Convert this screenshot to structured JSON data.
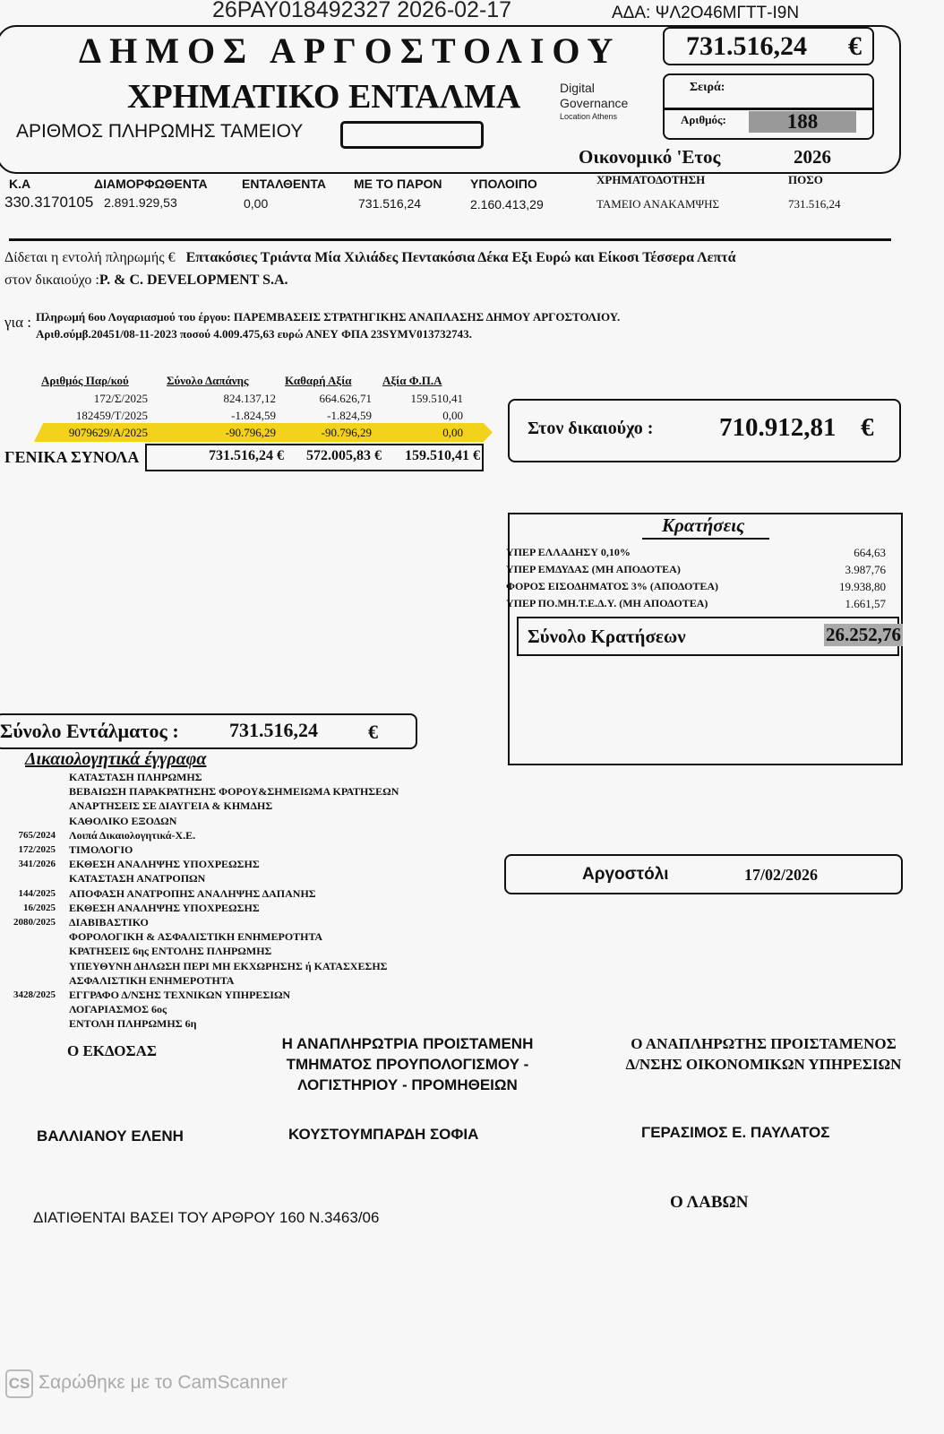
{
  "header": {
    "ada": "ΑΔΑ: ΨΛ2Ο46ΜΓΤΤ-Ι9Ν",
    "stamp": "26PAY018492327 2026-02-17",
    "signature_stamp": [
      "Digital",
      "Governance",
      "Location Athens"
    ],
    "municipality": "ΔΗΜΟΣ ΑΡΓΟΣΤΟΛΙΟΥ",
    "title": "ΧΡΗΜΑΤΙΚΟ ΕΝΤΑΛΜΑ",
    "payment_number_label": "ΑΡΙΘΜΟΣ ΠΛΗΡΩΜΗΣ ΤΑΜΕΙΟΥ",
    "payment_number_value": "",
    "amount": "731.516,24",
    "currency": "€",
    "series_label": "Σειρά:",
    "series_value": "",
    "number_label": "Αριθμός:",
    "number_value": "188",
    "fiscal_year_label": "Οικονομικό 'Ετος",
    "fiscal_year": "2026"
  },
  "budget": {
    "headers": [
      "Κ.Α",
      "ΔΙΑΜΟΡΦΩΘΕΝΤΑ",
      "ΕΝΤΑΛΘΕΝΤΑ",
      "ΜΕ ΤΟ ΠΑΡΟΝ",
      "ΥΠΟΛΟΙΠΟ",
      "ΧΡΗΜΑΤΟΔΟΤΗΣΗ",
      "ΠΟΣΟ"
    ],
    "values": [
      "330.3170105",
      "2.891.929,53",
      "0,00",
      "731.516,24",
      "2.160.413,29",
      "ΤΑΜΕΙΟ ΑΝΑΚΑΜΨΗΣ",
      "731.516,24"
    ]
  },
  "order": {
    "label": "Δίδεται η εντολή πληρωμής €",
    "amount_words": "Επτακόσιες Τριάντα Μία Χιλιάδες Πεντακόσια Δέκα Εξι Ευρώ και Είκοσι Τέσσερα Λεπτά",
    "beneficiary_label": "στον δικαιούχο :",
    "beneficiary": "P. & C. DEVELOPMENT S.A.",
    "for_label": "για :",
    "for_line1": "Πληρωμή 6ου Λογαριασμού του έργου: ΠΑΡΕΜΒΑΣΕΙΣ ΣΤΡΑΤΗΓΙΚΗΣ ΑΝΑΠΛΑΣΗΣ ΔΗΜΟΥ ΑΡΓΟΣΤΟΛΙΟΥ.",
    "for_line2": "Αριθ.σύμβ.20451/08-11-2023 ποσού 4.009.475,63 ευρώ  ΑΝΕΥ ΦΠΑ 23SYMV013732743."
  },
  "invoices": {
    "headers": [
      "Αριθμός Παρ/κού",
      "Σύνολο Δαπάνης",
      "Καθαρή Αξία",
      "Αξία Φ.Π.Α"
    ],
    "rows": [
      [
        "172/Σ/2025",
        "824.137,12",
        "664.626,71",
        "159.510,41"
      ],
      [
        "182459/Τ/2025",
        "-1.824,59",
        "-1.824,59",
        "0,00"
      ],
      [
        "9079629/Α/2025",
        "-90.796,29",
        "-90.796,29",
        "0,00"
      ]
    ],
    "highlight_color": "#f2d21b",
    "totals_label": "ΓΕΝΙΚΑ ΣΥΝΟΛΑ",
    "totals": [
      "731.516,24 €",
      "572.005,83 €",
      "159.510,41 €"
    ]
  },
  "beneficiary_box": {
    "label": "Στον δικαιούχο :",
    "amount": "710.912,81",
    "currency": "€"
  },
  "deductions": {
    "title": "Κρατήσεις",
    "rows": [
      [
        "ΥΠΕΡ ΕΛΛΑΔΗΣΥ 0,10%",
        "664,63"
      ],
      [
        "ΥΠΕΡ ΕΜΔΥΔΑΣ (ΜΗ ΑΠΟΔΟΤΕΑ)",
        "3.987,76"
      ],
      [
        "ΦΟΡΟΣ ΕΙΣΟΔΗΜΑΤΟΣ 3% (ΑΠΟΔΟΤΕΑ)",
        "19.938,80"
      ],
      [
        "ΥΠΕΡ ΠΟ.ΜΗ.Τ.Ε.Δ.Υ. (ΜΗ ΑΠΟΔΟΤΕΑ)",
        "1.661,57"
      ]
    ],
    "total_label": "Σύνολο Κρατήσεων",
    "total": "26.252,76"
  },
  "warrant_total": {
    "label": "Σύνολο Εντάλματος :",
    "amount": "731.516,24",
    "currency": "€"
  },
  "documents": {
    "title": "Δικαιολογητικά έγγραφα",
    "items": [
      [
        "",
        "ΚΑΤΑΣΤΑΣΗ ΠΛΗΡΩΜΗΣ"
      ],
      [
        "",
        "ΒΕΒΑΙΩΣΗ ΠΑΡΑΚΡΑΤΗΣΗΣ ΦΟΡΟΥ&ΣΗΜΕΙΩΜΑ ΚΡΑΤΗΣΕΩΝ"
      ],
      [
        "",
        "ΑΝΑΡΤΗΣΕΙΣ ΣΕ ΔΙΑΥΓΕΙΑ & ΚΗΜΔΗΣ"
      ],
      [
        "",
        "ΚΑΘΟΛΙΚΟ ΕΞΟΔΩΝ"
      ],
      [
        "765/2024",
        "Λοιπά Δικαιολογητικά-Χ.Ε."
      ],
      [
        "172/2025",
        "ΤΙΜΟΛΟΓΙΟ"
      ],
      [
        "341/2026",
        "ΕΚΘΕΣΗ ΑΝΑΛΗΨΗΣ ΥΠΟΧΡΕΩΣΗΣ"
      ],
      [
        "",
        "ΚΑΤΑΣΤΑΣΗ ΑΝΑΤΡΟΠΩΝ"
      ],
      [
        "144/2025",
        "ΑΠΟΦΑΣΗ ΑΝΑΤΡΟΠΗΣ ΑΝΑΛΗΨΗΣ ΔΑΠΑΝΗΣ"
      ],
      [
        "16/2025",
        "ΕΚΘΕΣΗ ΑΝΑΛΗΨΗΣ ΥΠΟΧΡΕΩΣΗΣ"
      ],
      [
        "2080/2025",
        "ΔΙΑΒΙΒΑΣΤΙΚΟ"
      ],
      [
        "",
        "ΦΟΡΟΛΟΓΙΚΗ & ΑΣΦΑΛΙΣΤΙΚΗ ΕΝΗΜΕΡΟΤΗΤΑ"
      ],
      [
        "",
        "ΚΡΑΤΗΣΕΙΣ 6ης ΕΝΤΟΛΗΣ ΠΛΗΡΩΜΗΣ"
      ],
      [
        "",
        "ΥΠΕΥΘΥΝΗ ΔΗΛΩΣΗ ΠΕΡΙ ΜΗ ΕΚΧΩΡΗΣΗΣ ή ΚΑΤΑΣΧΕΣΗΣ"
      ],
      [
        "",
        "ΑΣΦΑΛΙΣΤΙΚΗ ΕΝΗΜΕΡΟΤΗΤΑ"
      ],
      [
        "3428/2025",
        "ΕΓΓΡΑΦΟ Δ/ΝΣΗΣ ΤΕΧΝΙΚΩΝ ΥΠΗΡΕΣΙΩΝ"
      ],
      [
        "",
        "ΛΟΓΑΡΙΑΣΜΟΣ 6ος"
      ],
      [
        "",
        "ΕΝΤΟΛΗ ΠΛΗΡΩΜΗΣ 6η"
      ]
    ]
  },
  "place_date": {
    "place": "Αργοστόλι",
    "date": "17/02/2026"
  },
  "signatures": {
    "issuer_title": "Ο ΕΚΔΟΣΑΣ",
    "issuer_name": "ΒΑΛΛΙΑΝΟΥ ΕΛΕΝΗ",
    "head_title": [
      "Η ΑΝΑΠΛΗΡΩΤΡΙΑ ΠΡΟΙΣΤΑΜΕΝΗ",
      "ΤΜΗΜΑΤΟΣ ΠΡΟΥΠΟΛΟΓΙΣΜΟΥ -",
      "ΛΟΓΙΣΤΗΡΙΟΥ - ΠΡΟΜΗΘΕΙΩΝ"
    ],
    "head_name": "ΚΟΥΣΤΟΥΜΠΑΡΔΗ ΣΟΦΙΑ",
    "director_title": [
      "Ο ΑΝΑΠΛΗΡΩΤΗΣ ΠΡΟΙΣΤΑΜΕΝΟΣ",
      "Δ/ΝΣΗΣ ΟΙΚΟΝΟΜΙΚΩΝ ΥΠΗΡΕΣΙΩΝ"
    ],
    "director_name": "ΓΕΡΑΣΙΜΟΣ Ε. ΠΑΥΛΑΤΟΣ",
    "receiver_title": "Ο ΛΑΒΩΝ"
  },
  "legal_note": "ΔΙΑΤΙΘΕΝΤΑΙ ΒΑΣΕΙ ΤΟΥ ΑΡΘΡΟΥ 160 Ν.3463/06",
  "watermark": {
    "logo": "CS",
    "text": "Σαρώθηκε με το CamScanner"
  }
}
